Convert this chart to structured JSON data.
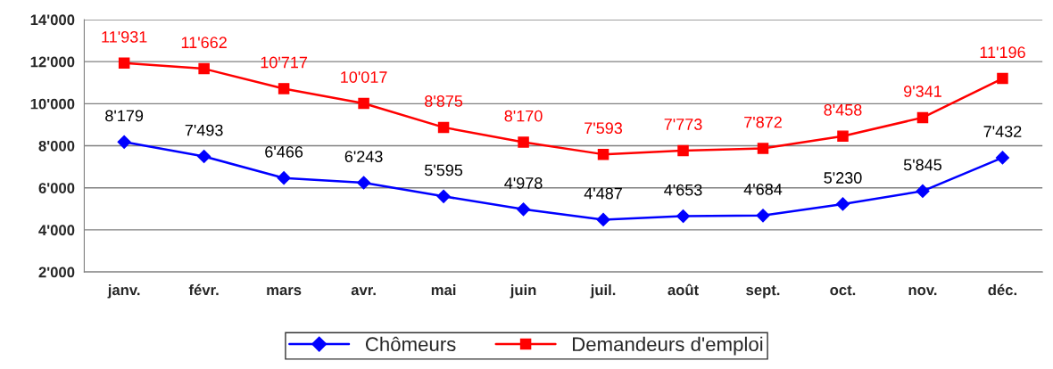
{
  "chart_data": {
    "type": "line",
    "categories": [
      "janv.",
      "févr.",
      "mars",
      "avr.",
      "mai",
      "juin",
      "juil.",
      "août",
      "sept.",
      "oct.",
      "nov.",
      "déc."
    ],
    "series": [
      {
        "name": "Chômeurs",
        "color": "#0000ff",
        "marker": "diamond",
        "values": [
          8179,
          7493,
          6466,
          6243,
          5595,
          4978,
          4487,
          4653,
          4684,
          5230,
          5845,
          7432
        ],
        "value_labels": [
          "8'179",
          "7'493",
          "6'466",
          "6'243",
          "5'595",
          "4'978",
          "4'487",
          "4'653",
          "4'684",
          "5'230",
          "5'845",
          "7'432"
        ]
      },
      {
        "name": "Demandeurs d'emploi",
        "color": "#ff0000",
        "marker": "square",
        "values": [
          11931,
          11662,
          10717,
          10017,
          8875,
          8170,
          7593,
          7773,
          7872,
          8458,
          9341,
          11196
        ],
        "value_labels": [
          "11'931",
          "11'662",
          "10'717",
          "10'017",
          "8'875",
          "8'170",
          "7'593",
          "7'773",
          "7'872",
          "8'458",
          "9'341",
          "11'196"
        ]
      }
    ],
    "ylim": [
      2000,
      14000
    ],
    "yticks": [
      {
        "value": 2000,
        "label": "2'000"
      },
      {
        "value": 4000,
        "label": "4'000"
      },
      {
        "value": 6000,
        "label": "6'000"
      },
      {
        "value": 8000,
        "label": "8'000"
      },
      {
        "value": 10000,
        "label": "10'000"
      },
      {
        "value": 12000,
        "label": "12'000"
      },
      {
        "value": 14000,
        "label": "14'000"
      }
    ],
    "grid": "y",
    "legend": "bottom",
    "line_style": "solid"
  }
}
